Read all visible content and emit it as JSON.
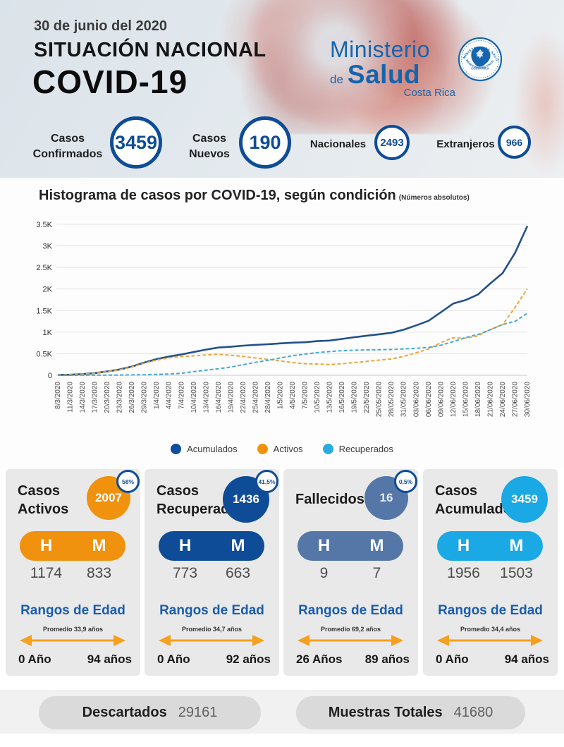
{
  "header": {
    "date": "30 de junio del 2020",
    "title_line1": "SITUACIÓN NACIONAL",
    "title_line2": "COVID-19",
    "logo": {
      "word1": "Ministerio",
      "word2_prefix": "de",
      "word2": "Salud",
      "word3": "Costa Rica",
      "seal_top": "MINISTERIO DE SALUD",
      "seal_middle": "COSTA RICA",
      "seal_bottom": "BIENESTAR PARA TODOS"
    }
  },
  "stats": [
    {
      "label": "Casos Confirmados",
      "value": "3459"
    },
    {
      "label": "Casos Nuevos",
      "value": "190"
    },
    {
      "label": "Nacionales",
      "value": "2493"
    },
    {
      "label": "Extranjeros",
      "value": "966"
    }
  ],
  "chart_data": {
    "type": "line",
    "title": "Histograma de casos por COVID-19, según condición",
    "subtitle": "(Números absolutos)",
    "ylim": [
      0,
      3500
    ],
    "ytick_labels": [
      "0",
      "0.5K",
      "1K",
      "1.5K",
      "2K",
      "2.5K",
      "3K",
      "3.5K"
    ],
    "grid": true,
    "legend_position": "bottom",
    "categories": [
      "8/3/2020",
      "11/3/2020",
      "14/3/2020",
      "17/3/2020",
      "20/3/2020",
      "23/3/2020",
      "26/3/2020",
      "29/3/2020",
      "1/4/2020",
      "4/4/2020",
      "7/4/2020",
      "10/4/2020",
      "13/4/2020",
      "16/4/2020",
      "19/4/2020",
      "22/4/2020",
      "25/4/2020",
      "28/4/2020",
      "1/5/2020",
      "4/5/2020",
      "7/5/2020",
      "10/5/2020",
      "13/5/2020",
      "16/5/2020",
      "19/5/2020",
      "22/5/2020",
      "25/05/2020",
      "28/05/2020",
      "31/05/2020",
      "03/06/2020",
      "06/06/2020",
      "09/06/2020",
      "12/06/2020",
      "15/06/2020",
      "18/06/2020",
      "21/06/2020",
      "24/06/2020",
      "27/06/2020",
      "30/06/2020"
    ],
    "series": [
      {
        "name": "Acumulados",
        "color": "#24518B",
        "dot_color": "#0D4E9E",
        "dash": false,
        "values": [
          9,
          13,
          26,
          50,
          89,
          134,
          201,
          295,
          375,
          435,
          483,
          539,
          595,
          642,
          660,
          687,
          705,
          719,
          739,
          755,
          765,
          792,
          804,
          843,
          882,
          918,
          951,
          984,
          1056,
          1157,
          1263,
          1461,
          1662,
          1744,
          1871,
          2127,
          2368,
          2836,
          3459
        ]
      },
      {
        "name": "Activos",
        "color": "#E9A63C",
        "dot_color": "#F0920E",
        "dash": true,
        "values": [
          9,
          13,
          25,
          48,
          86,
          128,
          192,
          280,
          352,
          402,
          435,
          450,
          470,
          487,
          464,
          436,
          399,
          368,
          333,
          294,
          269,
          261,
          248,
          266,
          295,
          322,
          351,
          378,
          438,
          522,
          608,
          756,
          872,
          858,
          914,
          1058,
          1174,
          1570,
          2007
        ]
      },
      {
        "name": "Recuperados",
        "color": "#45A9D4",
        "dot_color": "#29ABE2",
        "dash": true,
        "values": [
          0,
          0,
          1,
          2,
          3,
          5,
          8,
          13,
          20,
          30,
          45,
          85,
          120,
          150,
          190,
          245,
          300,
          345,
          400,
          455,
          490,
          525,
          550,
          570,
          580,
          588,
          592,
          598,
          610,
          625,
          645,
          695,
          780,
          875,
          945,
          1055,
          1180,
          1250,
          1436
        ]
      }
    ]
  },
  "cards": [
    {
      "title": "Casos Activos",
      "value": "2007",
      "pct": "58%",
      "color": "#F0920E",
      "h_label": "H",
      "m_label": "M",
      "h_value": "1174",
      "m_value": "833",
      "rangos_label": "Rangos de Edad",
      "promedio": "Promedio 33,9 años",
      "age_min": "0 Año",
      "age_max": "94 años"
    },
    {
      "title": "Casos Recuperados",
      "value": "1436",
      "pct": "41,5%",
      "color": "#0F4C97",
      "h_label": "H",
      "m_label": "M",
      "h_value": "773",
      "m_value": "663",
      "rangos_label": "Rangos de Edad",
      "promedio": "Promedio 34,7 años",
      "age_min": "0 Año",
      "age_max": "92 años"
    },
    {
      "title": "Fallecidos",
      "value": "16",
      "pct": "0,5%",
      "color": "#5577A8",
      "h_label": "H",
      "m_label": "M",
      "h_value": "9",
      "m_value": "7",
      "rangos_label": "Rangos de Edad",
      "promedio": "Promedio 69,2 años",
      "age_min": "26 Años",
      "age_max": "89 años"
    },
    {
      "title": "Casos Acumulados",
      "value": "3459",
      "pct": null,
      "color": "#1AA9E4",
      "h_label": "H",
      "m_label": "M",
      "h_value": "1956",
      "m_value": "1503",
      "rangos_label": "Rangos de Edad",
      "promedio": "Promedio 34,4 años",
      "age_min": "0 Año",
      "age_max": "94 años"
    }
  ],
  "bottom": {
    "descartados_label": "Descartados",
    "descartados_value": "29161",
    "muestras_label": "Muestras Totales",
    "muestras_value": "41680"
  },
  "colors": {
    "navy": "#0F4C97",
    "orange": "#F0920E",
    "light_blue": "#1AA9E4",
    "steel_blue": "#5577A8",
    "rangos_blue": "#1A5DAD",
    "arrow_orange": "#F5A01E",
    "logo_blue": "#1565AE"
  }
}
